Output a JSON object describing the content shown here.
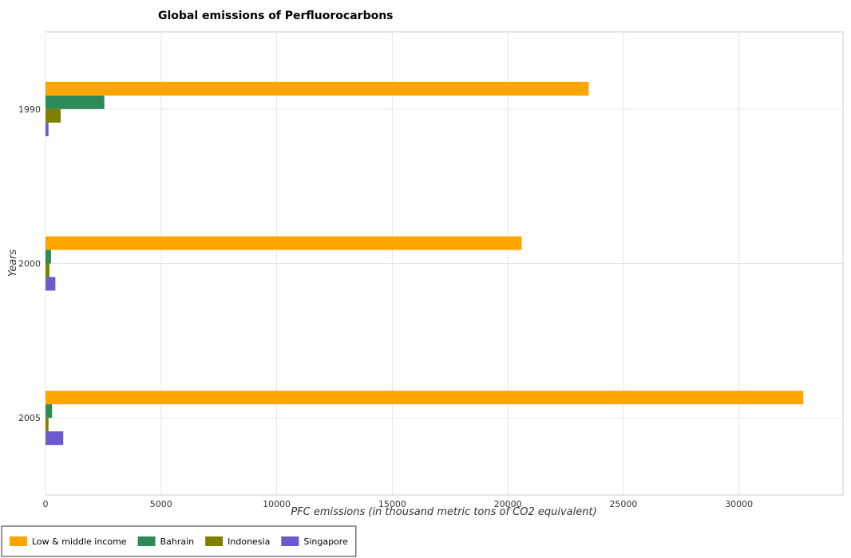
{
  "chart_data": {
    "type": "bar",
    "orientation": "horizontal",
    "title": "Global emissions of Perfluorocarbons",
    "xlabel": "PFC emissions (in thousand metric tons of CO2 equivalent)",
    "ylabel": "Years",
    "categories": [
      "1990",
      "2000",
      "2005"
    ],
    "xlim": [
      0,
      34500
    ],
    "xticks": [
      0,
      5000,
      10000,
      15000,
      20000,
      25000,
      30000
    ],
    "grid": true,
    "legend_position": "bottom-left",
    "series": [
      {
        "name": "Low & middle income",
        "color": "#FFA500",
        "values": [
          23500,
          20600,
          32780
        ]
      },
      {
        "name": "Bahrain",
        "color": "#2E8B57",
        "values": [
          2544.9,
          239.8,
          282.6
        ]
      },
      {
        "name": "Indonesia",
        "color": "#808000",
        "values": [
          656.2,
          170.3,
          130.2
        ]
      },
      {
        "name": "Singapore",
        "color": "#6A5ACD",
        "values": [
          129.6,
          427.5,
          768.2
        ]
      }
    ]
  }
}
